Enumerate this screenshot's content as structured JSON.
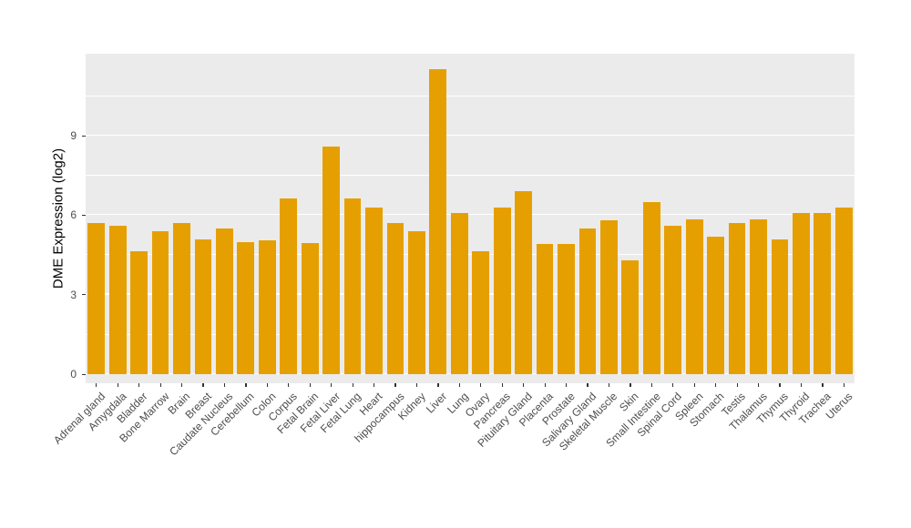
{
  "chart_data": {
    "type": "bar",
    "title": "",
    "xlabel": "",
    "ylabel": "DME Expression (log2)",
    "categories": [
      "Adrenal gland",
      "Amygdala",
      "Bladder",
      "Bone Marrow",
      "Brain",
      "Breast",
      "Caudate Nucleus",
      "Cerebellum",
      "Colon",
      "Corpus",
      "Fetal Brain",
      "Fetal Liver",
      "Fetal Lung",
      "Heart",
      "hippocampus",
      "Kidney",
      "Liver",
      "Lung",
      "Ovary",
      "Pancreas",
      "Pituitary Gland",
      "Placenta",
      "Prostate",
      "Salivary Gland",
      "Skeletal Muscle",
      "Skin",
      "Small Intestine",
      "Spinal Cord",
      "Spleen",
      "Stomach",
      "Testis",
      "Thalamus",
      "Thymus",
      "Thyroid",
      "Trachea",
      "Uterus"
    ],
    "values": [
      5.7,
      5.6,
      4.65,
      5.4,
      5.7,
      5.1,
      5.5,
      5.0,
      5.05,
      6.65,
      4.95,
      8.6,
      6.65,
      6.3,
      5.7,
      5.4,
      11.5,
      6.1,
      4.65,
      6.3,
      6.9,
      4.9,
      4.9,
      5.5,
      5.8,
      4.3,
      6.5,
      5.6,
      5.85,
      5.2,
      5.7,
      5.85,
      5.1,
      6.1,
      6.1,
      6.3
    ],
    "yticks": [
      0,
      3,
      6,
      9
    ],
    "minor_gridticks": [
      1.5,
      4.5,
      7.5,
      10.5
    ],
    "ylim": [
      0,
      12.1
    ],
    "legend": "none",
    "grid": "on",
    "bar_color": "#E69F00",
    "panel_bg": "#EBEBEB",
    "grid_color": "#FFFFFF",
    "axis_text_color": "#4D4D4D"
  }
}
